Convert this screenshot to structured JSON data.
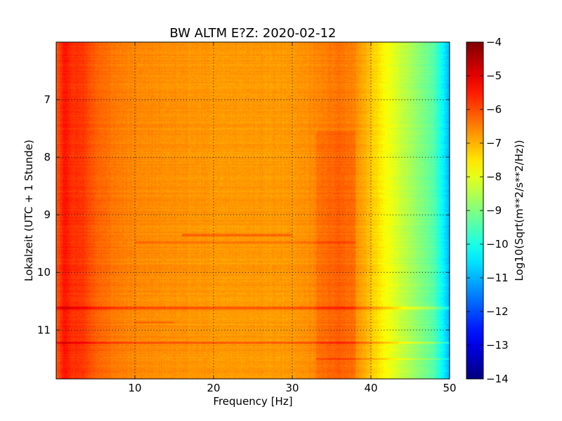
{
  "chart_data": {
    "type": "heatmap",
    "title": "BW ALTM E?Z: 2020-02-12",
    "xlabel": "Frequency [Hz]",
    "ylabel": "Lokalzeit (UTC + 1 Stunde)",
    "colorbar_label": "Log10(Sqrt(m**2/s**2/Hz))",
    "colormap": "jet",
    "xlim": [
      0,
      50
    ],
    "ylim": [
      6.0,
      11.85
    ],
    "y_inverted": true,
    "clim": [
      -14,
      -4
    ],
    "grid": true,
    "x_ticks": [
      10,
      20,
      30,
      40,
      50
    ],
    "x_tick_labels": [
      "10",
      "20",
      "30",
      "40",
      "50"
    ],
    "y_ticks": [
      7,
      8,
      9,
      10,
      11
    ],
    "y_tick_labels": [
      "7",
      "8",
      "9",
      "10",
      "11"
    ],
    "colorbar_ticks": [
      -4,
      -5,
      -6,
      -7,
      -8,
      -9,
      -10,
      -11,
      -12,
      -13,
      -14
    ],
    "colorbar_tick_labels": [
      "−4",
      "−5",
      "−6",
      "−7",
      "−8",
      "−9",
      "−10",
      "−11",
      "−12",
      "−13",
      "−14"
    ],
    "frequency_profile": [
      {
        "f": 0.0,
        "v": -6.2
      },
      {
        "f": 1.0,
        "v": -5.4
      },
      {
        "f": 2.0,
        "v": -5.7
      },
      {
        "f": 3.5,
        "v": -5.8
      },
      {
        "f": 5.0,
        "v": -6.2
      },
      {
        "f": 7.0,
        "v": -6.4
      },
      {
        "f": 10.0,
        "v": -6.6
      },
      {
        "f": 20.0,
        "v": -6.75
      },
      {
        "f": 30.0,
        "v": -6.75
      },
      {
        "f": 33.0,
        "v": -6.6
      },
      {
        "f": 36.0,
        "v": -6.35
      },
      {
        "f": 38.0,
        "v": -6.6
      },
      {
        "f": 40.0,
        "v": -7.2
      },
      {
        "f": 42.0,
        "v": -7.8
      },
      {
        "f": 45.0,
        "v": -8.6
      },
      {
        "f": 48.0,
        "v": -9.4
      },
      {
        "f": 49.5,
        "v": -10.6
      },
      {
        "f": 50.0,
        "v": -11.0
      }
    ],
    "time_bands": [
      {
        "t": 9.35,
        "f_from": 16,
        "f_to": 30,
        "delta": 0.5
      },
      {
        "t": 9.48,
        "f_from": 10,
        "f_to": 38,
        "delta": 0.4
      },
      {
        "t": 10.62,
        "f_from": 0,
        "f_to": 50,
        "delta": 0.7
      },
      {
        "t": 11.22,
        "f_from": 0,
        "f_to": 50,
        "delta": 0.6
      },
      {
        "t": 10.87,
        "f_from": 10,
        "f_to": 15,
        "delta": 0.3
      },
      {
        "t": 11.5,
        "f_from": 33,
        "f_to": 50,
        "delta": 0.4
      }
    ]
  }
}
